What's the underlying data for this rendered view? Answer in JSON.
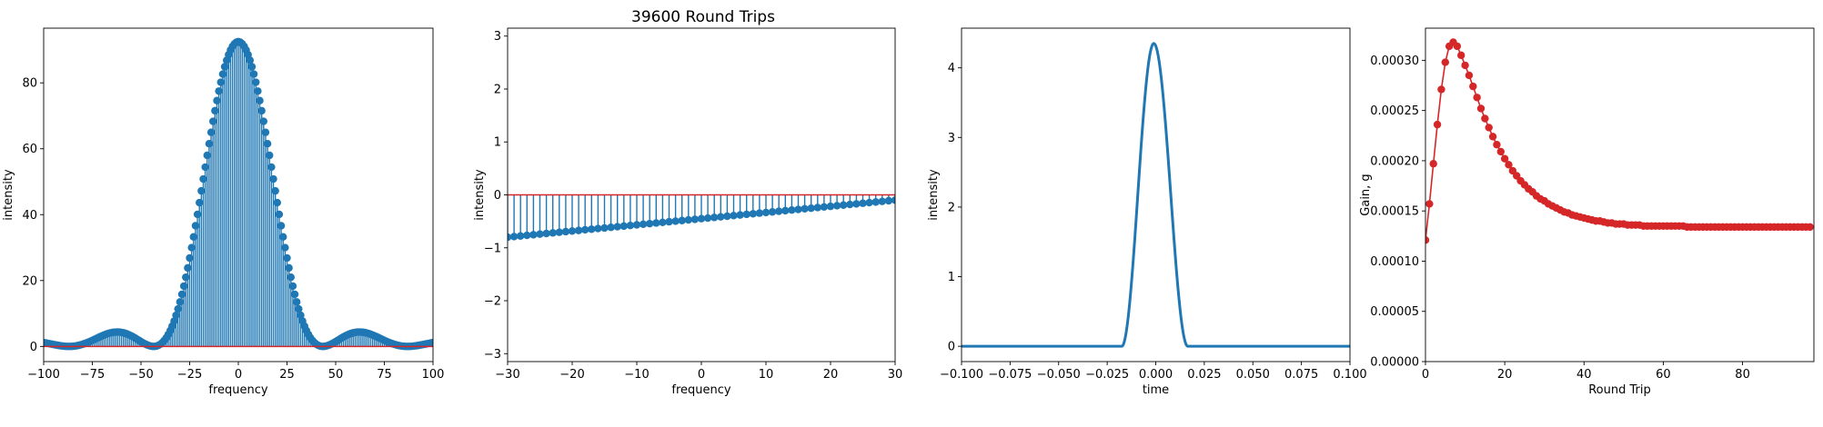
{
  "figure": {
    "title": "39600 Round Trips"
  },
  "colors": {
    "blue": "#1f77b4",
    "red": "#d62728"
  },
  "chart_data": [
    {
      "type": "stem",
      "name": "spectrum-intensity",
      "xlabel": "frequency",
      "ylabel": "intensity",
      "xlim": [
        -100,
        100
      ],
      "ylim": [
        -4.6,
        96.6
      ],
      "xticks": [
        -100,
        -75,
        -50,
        -25,
        0,
        25,
        50,
        75,
        100
      ],
      "xtick_labels": [
        "−100",
        "−75",
        "−50",
        "−25",
        "0",
        "25",
        "50",
        "75",
        "100"
      ],
      "yticks": [
        0,
        20,
        40,
        60,
        80
      ],
      "ytick_labels": [
        "0",
        "20",
        "40",
        "60",
        "80"
      ],
      "baseline": 0,
      "function": "sinc-squared envelope, peak 92.5 at 0, first zeros near ±43, side lobes ≈5.5 at ±55, ≈2 at ±85",
      "x_step": 1,
      "peak": 92.5,
      "first_zero": 43.5
    },
    {
      "type": "stem",
      "name": "spectrum-phase",
      "xlabel": "frequency",
      "ylabel": "intensity",
      "xlim": [
        -30,
        30
      ],
      "ylim": [
        -3.15,
        3.15
      ],
      "xticks": [
        -30,
        -20,
        -10,
        0,
        10,
        20,
        30
      ],
      "xtick_labels": [
        "−30",
        "−20",
        "−10",
        "0",
        "10",
        "20",
        "30"
      ],
      "yticks": [
        -3,
        -2,
        -1,
        0,
        1,
        2,
        3
      ],
      "ytick_labels": [
        "−3",
        "−2",
        "−1",
        "0",
        "1",
        "2",
        "3"
      ],
      "baseline": 0,
      "x_step": 1,
      "y_at_xmin": -0.8,
      "y_at_xmax": -0.1
    },
    {
      "type": "line",
      "name": "temporal-intensity",
      "xlabel": "time",
      "ylabel": "intensity",
      "xlim": [
        -0.1,
        0.1
      ],
      "ylim": [
        -0.22,
        4.57
      ],
      "xticks": [
        -0.1,
        -0.075,
        -0.05,
        -0.025,
        0,
        0.025,
        0.05,
        0.075,
        0.1
      ],
      "xtick_labels": [
        "−0.100",
        "−0.075",
        "−0.050",
        "−0.025",
        "0.000",
        "0.025",
        "0.050",
        "0.075",
        "0.100"
      ],
      "yticks": [
        0,
        1,
        2,
        3,
        4
      ],
      "ytick_labels": [
        "0",
        "1",
        "2",
        "3",
        "4"
      ],
      "peak": 4.35,
      "center": -0.001,
      "pulse_edges": [
        -0.0175,
        0.0165
      ]
    },
    {
      "type": "line-marker",
      "name": "gain-vs-round-trip",
      "xlabel": "Round Trip",
      "ylabel": "Gain, g",
      "xlim": [
        0,
        98
      ],
      "ylim": [
        0,
        0.000332
      ],
      "xticks": [
        0,
        20,
        40,
        60,
        80
      ],
      "xtick_labels": [
        "0",
        "20",
        "40",
        "60",
        "80"
      ],
      "yticks": [
        0,
        5e-05,
        0.0001,
        0.00015,
        0.0002,
        0.00025,
        0.0003
      ],
      "ytick_labels": [
        "0.00000",
        "0.00005",
        "0.00010",
        "0.00015",
        "0.00020",
        "0.00025",
        "0.00030"
      ],
      "x": [
        0,
        1,
        2,
        3,
        4,
        5,
        6,
        7,
        8,
        9,
        10,
        11,
        12,
        13,
        14,
        15,
        16,
        17,
        18,
        19,
        20,
        21,
        22,
        23,
        24,
        25,
        26,
        27,
        28,
        29,
        30,
        31,
        32,
        33,
        34,
        35,
        36,
        37,
        38,
        39,
        40,
        41,
        42,
        43,
        44,
        45,
        46,
        47,
        48,
        49,
        50,
        51,
        52,
        53,
        54,
        55,
        56,
        57,
        58,
        59,
        60,
        61,
        62,
        63,
        64,
        65,
        66,
        67,
        68,
        69,
        70,
        71,
        72,
        73,
        74,
        75,
        76,
        77,
        78,
        79,
        80,
        81,
        82,
        83,
        84,
        85,
        86,
        87,
        88,
        89,
        90,
        91,
        92,
        93,
        94,
        95,
        96,
        97
      ],
      "values": [
        0.000121,
        0.000157,
        0.000197,
        0.000236,
        0.000271,
        0.000298,
        0.000314,
        0.000318,
        0.000314,
        0.000305,
        0.000295,
        0.000285,
        0.000274,
        0.000263,
        0.000252,
        0.000242,
        0.000233,
        0.000224,
        0.000216,
        0.000209,
        0.000202,
        0.000196,
        0.00019,
        0.000185,
        0.00018,
        0.000176,
        0.000172,
        0.000169,
        0.000165,
        0.000162,
        0.00016,
        0.000157,
        0.000155,
        0.000153,
        0.000151,
        0.000149,
        0.000148,
        0.000146,
        0.000145,
        0.000144,
        0.000143,
        0.000142,
        0.000141,
        0.00014,
        0.00014,
        0.000139,
        0.000138,
        0.000138,
        0.000137,
        0.000137,
        0.000137,
        0.000136,
        0.000136,
        0.000136,
        0.000136,
        0.000135,
        0.000135,
        0.000135,
        0.000135,
        0.000135,
        0.000135,
        0.000135,
        0.000135,
        0.000135,
        0.000135,
        0.000135,
        0.000134,
        0.000134,
        0.000134,
        0.000134,
        0.000134,
        0.000134,
        0.000134,
        0.000134,
        0.000134,
        0.000134,
        0.000134,
        0.000134,
        0.000134,
        0.000134,
        0.000134,
        0.000134,
        0.000134,
        0.000134,
        0.000134,
        0.000134,
        0.000134,
        0.000134,
        0.000134,
        0.000134,
        0.000134,
        0.000134,
        0.000134,
        0.000134,
        0.000134,
        0.000134,
        0.000134,
        0.000134
      ]
    }
  ]
}
